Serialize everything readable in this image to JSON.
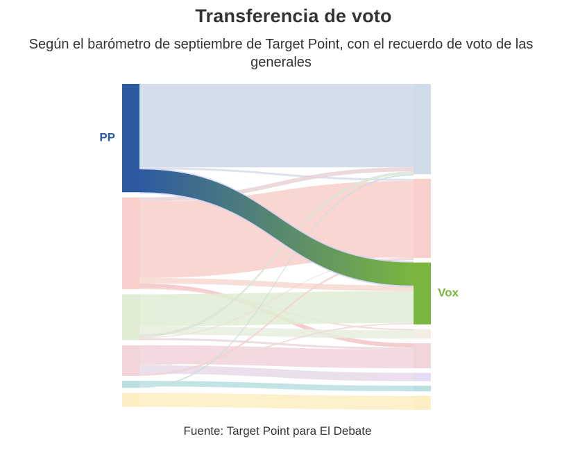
{
  "title": "Transferencia de voto",
  "subtitle": "Según el barómetro de septiembre de Target Point, con el recuerdo de voto de las generales",
  "source": "Fuente: Target Point para El Debate",
  "chart_data": {
    "type": "sankey",
    "labeled_nodes": [
      {
        "side": "left",
        "label": "PP",
        "color": "#2d5aa0"
      },
      {
        "side": "right",
        "label": "Vox",
        "color": "#7ab63f"
      }
    ],
    "left_nodes": [
      {
        "id": "L0",
        "label": "PP",
        "value": 156,
        "color": "#2d5aa0"
      },
      {
        "id": "L1",
        "label": "",
        "value": 132,
        "color": "#f9cfcb"
      },
      {
        "id": "L2",
        "label": "",
        "value": 66,
        "color": "#e0edd4"
      },
      {
        "id": "L3",
        "label": "",
        "value": 44,
        "color": "#f0d4da"
      },
      {
        "id": "L4",
        "label": "",
        "value": 10,
        "color": "#b9dfe2"
      },
      {
        "id": "L5",
        "label": "",
        "value": 20,
        "color": "#fdefc3"
      }
    ],
    "right_nodes": [
      {
        "id": "R0",
        "label": "",
        "value": 130,
        "color": "#d0dbea"
      },
      {
        "id": "R1",
        "label": "",
        "value": 114,
        "color": "#f9cfcb"
      },
      {
        "id": "R2",
        "label": "Vox",
        "value": 89,
        "color": "#7ab63f"
      },
      {
        "id": "R3",
        "label": "",
        "value": 14,
        "color": "#f4ede3"
      },
      {
        "id": "R4",
        "label": "",
        "value": 36,
        "color": "#f0d4da"
      },
      {
        "id": "R5",
        "label": "",
        "value": 12,
        "color": "#e4dcf4"
      },
      {
        "id": "R6",
        "label": "",
        "value": 8,
        "color": "#b9dfe2"
      },
      {
        "id": "R7",
        "label": "",
        "value": 20,
        "color": "#fdefc3"
      }
    ],
    "flows": [
      {
        "source": "L0",
        "target": "R0",
        "value": 120,
        "color": "#cdd8e6"
      },
      {
        "source": "L0",
        "target": "R1",
        "value": 3,
        "color": "#d8dde8"
      },
      {
        "source": "L0",
        "target": "R2",
        "value": 33,
        "color": "gradient",
        "highlight": true
      },
      {
        "source": "L1",
        "target": "R0",
        "value": 6,
        "color": "#e8d2d6"
      },
      {
        "source": "L1",
        "target": "R1",
        "value": 110,
        "color": "#f9cfcb"
      },
      {
        "source": "L1",
        "target": "R2",
        "value": 8,
        "color": "#f6d8cf"
      },
      {
        "source": "L1",
        "target": "R4",
        "value": 6,
        "color": "#f3c3c8"
      },
      {
        "source": "L1",
        "target": "R3",
        "value": 2,
        "color": "#f3d6d0"
      },
      {
        "source": "L2",
        "target": "R2",
        "value": 46,
        "color": "#e0edd4"
      },
      {
        "source": "L2",
        "target": "R3",
        "value": 12,
        "color": "#e6efde"
      },
      {
        "source": "L2",
        "target": "R0",
        "value": 4,
        "color": "#dbe5d6"
      },
      {
        "source": "L2",
        "target": "R1",
        "value": 1,
        "color": "#f0d6d0"
      },
      {
        "source": "L2",
        "target": "R4",
        "value": 3,
        "color": "#ead7d8"
      },
      {
        "source": "L3",
        "target": "R4",
        "value": 27,
        "color": "#f0d4da"
      },
      {
        "source": "L3",
        "target": "R2",
        "value": 2,
        "color": "#eddad8"
      },
      {
        "source": "L3",
        "target": "R5",
        "value": 12,
        "color": "#e8d8ea"
      },
      {
        "source": "L3",
        "target": "R1",
        "value": 3,
        "color": "#f2d2d4"
      },
      {
        "source": "L4",
        "target": "R6",
        "value": 8,
        "color": "#b9dfe2"
      },
      {
        "source": "L4",
        "target": "R0",
        "value": 2,
        "color": "#c9dde3"
      },
      {
        "source": "L5",
        "target": "R7",
        "value": 20,
        "color": "#fdefc3"
      }
    ]
  }
}
